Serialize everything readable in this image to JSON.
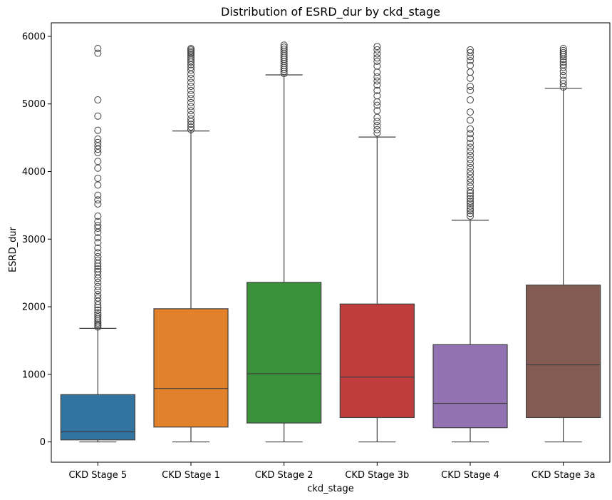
{
  "chart_data": {
    "type": "box",
    "title": "Distribution of ESRD_dur by ckd_stage",
    "xlabel": "ckd_stage",
    "ylabel": "ESRD_dur",
    "ylim": [
      -300,
      6200
    ],
    "yticks": [
      0,
      1000,
      2000,
      3000,
      4000,
      5000,
      6000
    ],
    "grid": false,
    "categories": [
      "CKD Stage 5",
      "CKD Stage 1",
      "CKD Stage 2",
      "CKD Stage 3b",
      "CKD Stage 4",
      "CKD Stage 3a"
    ],
    "boxes": [
      {
        "category": "CKD Stage 5",
        "color": "#3274a1",
        "whisker_low": 0,
        "q1": 30,
        "median": 150,
        "q3": 700,
        "whisker_high": 1680,
        "outliers": [
          1700,
          1720,
          1740,
          1760,
          1790,
          1820,
          1850,
          1880,
          1910,
          1950,
          1990,
          2030,
          2080,
          2130,
          2180,
          2240,
          2300,
          2360,
          2420,
          2470,
          2520,
          2560,
          2600,
          2640,
          2690,
          2740,
          2800,
          2870,
          2950,
          3020,
          3100,
          3160,
          3200,
          3260,
          3340,
          3520,
          3580,
          3650,
          3800,
          3900,
          4050,
          4150,
          4280,
          4330,
          4380,
          4430,
          4480,
          4610,
          4820,
          5060,
          5750,
          5820
        ]
      },
      {
        "category": "CKD Stage 1",
        "color": "#e1812c",
        "whisker_low": 0,
        "q1": 220,
        "median": 790,
        "q3": 1970,
        "whisker_high": 4600,
        "outliers": [
          4620,
          4660,
          4700,
          4740,
          4780,
          4840,
          4900,
          4960,
          5020,
          5080,
          5140,
          5200,
          5260,
          5320,
          5380,
          5440,
          5500,
          5540,
          5580,
          5620,
          5650,
          5680,
          5710,
          5740,
          5760,
          5780,
          5800,
          5820
        ]
      },
      {
        "category": "CKD Stage 2",
        "color": "#3a923a",
        "whisker_low": 0,
        "q1": 280,
        "median": 1010,
        "q3": 2360,
        "whisker_high": 5430,
        "outliers": [
          5450,
          5480,
          5510,
          5540,
          5570,
          5600,
          5630,
          5660,
          5690,
          5720,
          5750,
          5780,
          5810,
          5840,
          5870
        ]
      },
      {
        "category": "CKD Stage 3b",
        "color": "#c03d3e",
        "whisker_low": 0,
        "q1": 360,
        "median": 960,
        "q3": 2040,
        "whisker_high": 4510,
        "outliers": [
          4570,
          4620,
          4680,
          4740,
          4800,
          4900,
          4980,
          5030,
          5120,
          5200,
          5280,
          5340,
          5400,
          5470,
          5560,
          5630,
          5680,
          5740,
          5800,
          5850
        ]
      },
      {
        "category": "CKD Stage 4",
        "color": "#9372b2",
        "whisker_low": 0,
        "q1": 210,
        "median": 570,
        "q3": 1440,
        "whisker_high": 3280,
        "outliers": [
          3340,
          3380,
          3420,
          3450,
          3490,
          3530,
          3560,
          3600,
          3640,
          3680,
          3720,
          3780,
          3840,
          3890,
          3950,
          4000,
          4060,
          4120,
          4180,
          4240,
          4300,
          4360,
          4420,
          4490,
          4560,
          4630,
          4760,
          4880,
          5060,
          5200,
          5260,
          5380,
          5470,
          5570,
          5640,
          5700,
          5760,
          5800
        ]
      },
      {
        "category": "CKD Stage 3a",
        "color": "#845b53",
        "whisker_low": 0,
        "q1": 360,
        "median": 1140,
        "q3": 2320,
        "whisker_high": 5230,
        "outliers": [
          5250,
          5300,
          5350,
          5420,
          5480,
          5540,
          5580,
          5620,
          5660,
          5700,
          5730,
          5760,
          5790,
          5820
        ]
      }
    ]
  }
}
